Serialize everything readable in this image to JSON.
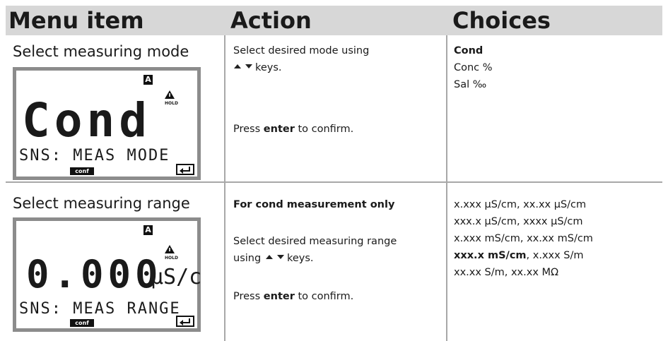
{
  "table": {
    "header": [
      "Menu item",
      "Action",
      "Choices"
    ],
    "rows": [
      {
        "menu_item": "Select measuring mode",
        "display": {
          "indicator": "A",
          "hold": "HOLD",
          "main": "Cond",
          "bottom": "SNS: MEAS MODE",
          "conf": "conf"
        },
        "action": {
          "instruction": [
            "Select desired mode using",
            "keys."
          ],
          "confirm": [
            "Press ",
            "enter",
            " to confirm."
          ]
        },
        "choices": [
          [
            "Cond"
          ],
          [
            "Conc %"
          ],
          [
            "Sal ‰"
          ]
        ]
      },
      {
        "menu_item": "Select measuring range",
        "display": {
          "indicator": "A",
          "hold": "HOLD",
          "main": "0.000",
          "unit": "µS/c",
          "bottom": "SNS: MEAS RANGE",
          "conf": "conf"
        },
        "action": {
          "note": "For cond measurement only",
          "instruction": [
            "Select desired measuring range",
            "using",
            "keys."
          ],
          "confirm": [
            "Press ",
            "enter",
            " to confirm."
          ]
        },
        "choices": [
          [
            "x.xxx µS/cm, xx.xx µS/cm"
          ],
          [
            "xxx.x µS/cm, xxxx µS/cm"
          ],
          [
            "x.xxx mS/cm, xx.xx mS/cm"
          ],
          [
            "xxx.x mS/cm",
            ", x.xxx S/m"
          ],
          [
            "xx.xx S/m, xx.xx MΩ"
          ]
        ]
      }
    ]
  }
}
